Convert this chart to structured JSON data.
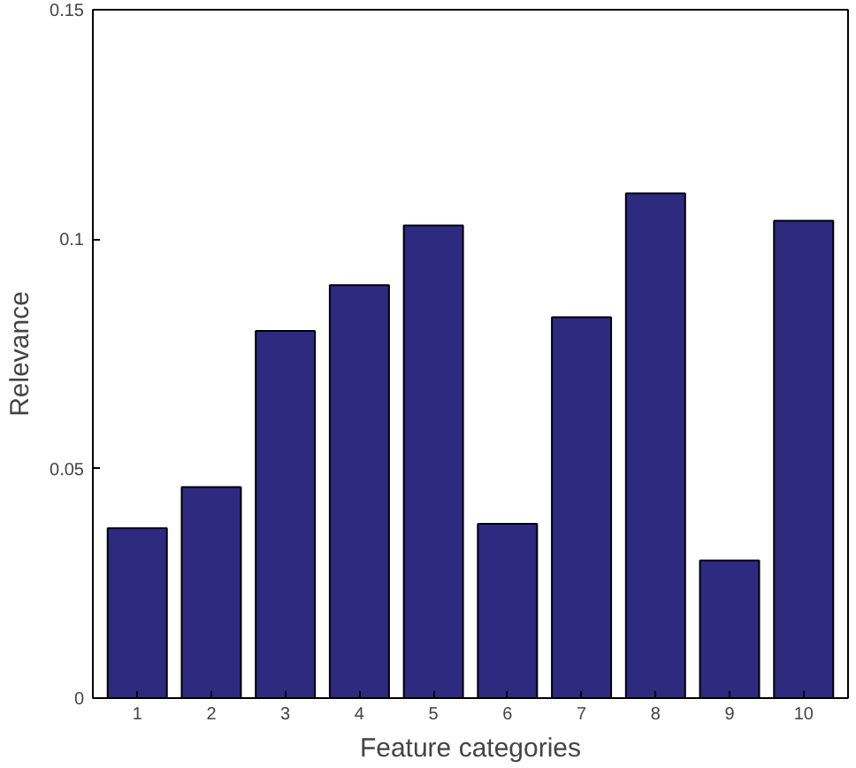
{
  "chart_data": {
    "type": "bar",
    "xlabel": "Feature categories",
    "ylabel": "Relevance",
    "categories": [
      "1",
      "2",
      "3",
      "4",
      "5",
      "6",
      "7",
      "8",
      "9",
      "10"
    ],
    "values": [
      0.037,
      0.046,
      0.08,
      0.09,
      0.103,
      0.038,
      0.083,
      0.11,
      0.03,
      0.104
    ],
    "color": "#2e2a80",
    "ylim": [
      0,
      0.15
    ],
    "yticks": [
      0,
      0.05,
      0.1,
      0.15
    ],
    "grid": false
  }
}
